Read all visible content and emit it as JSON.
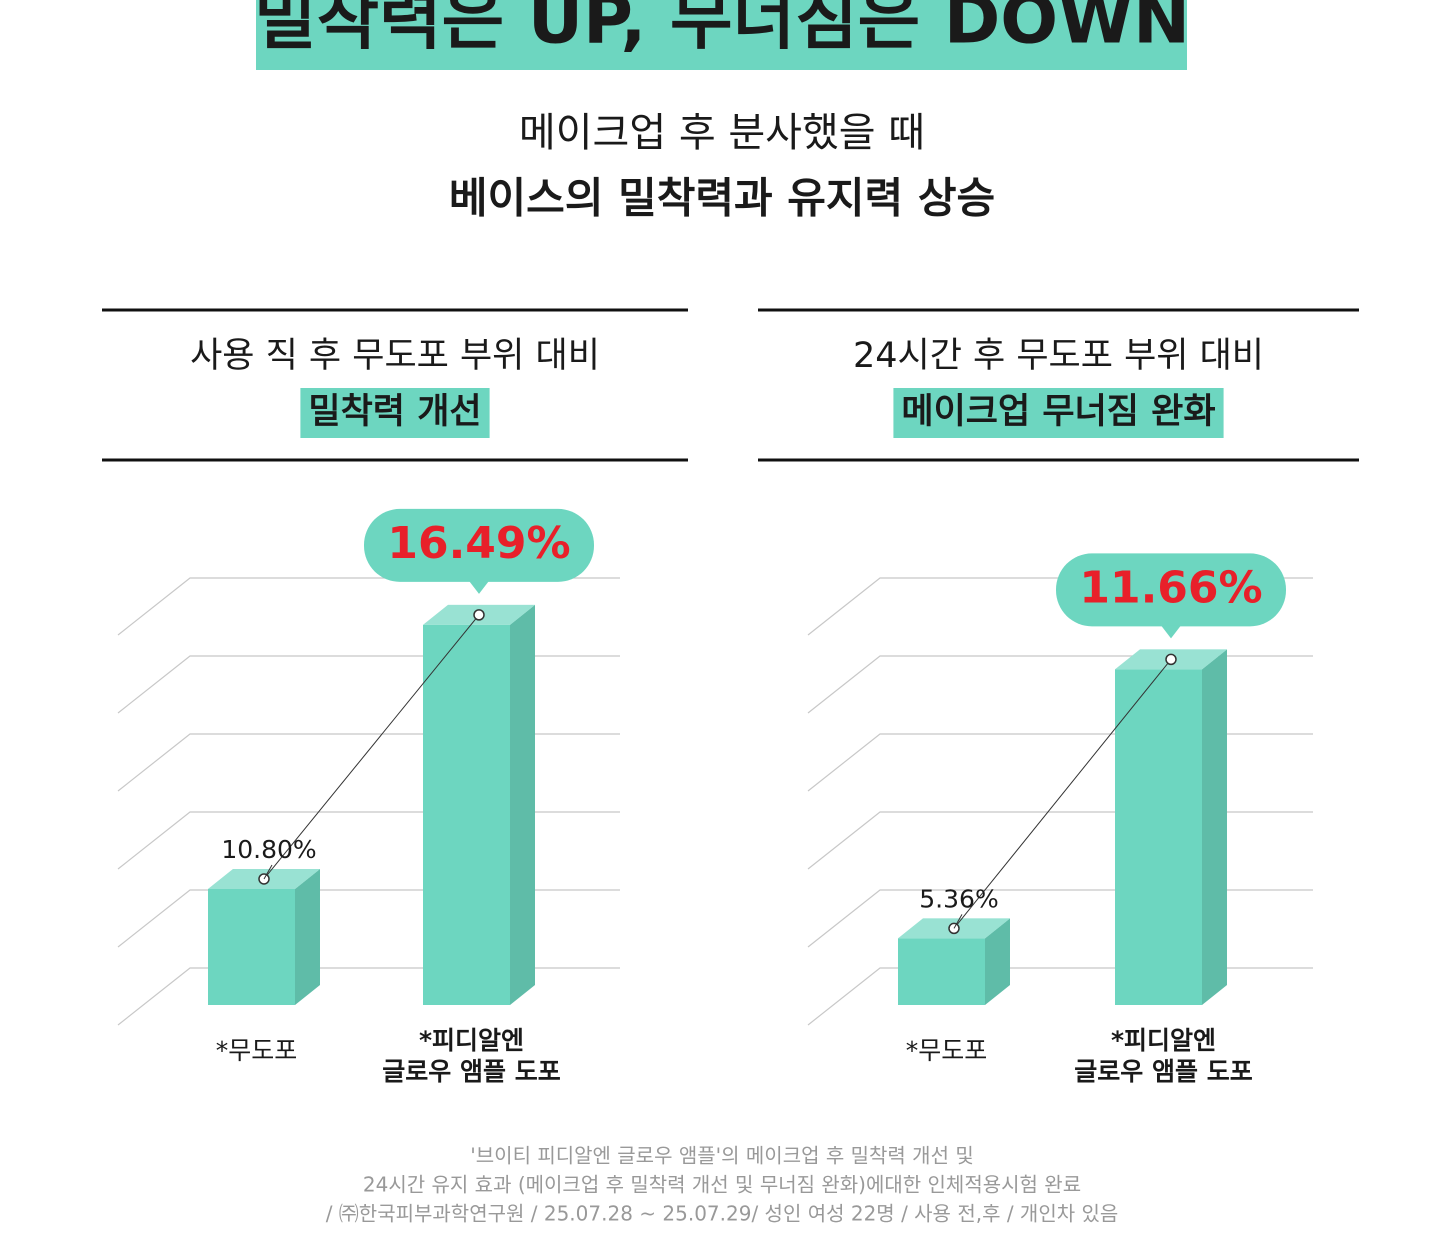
{
  "header": {
    "title": "밀착력은 UP, 무너짐은 DOWN",
    "subtitle": "메이크업 후 분사했을 때",
    "headline": "베이스의 밀착력과 유지력 상승"
  },
  "chart_data": [
    {
      "type": "bar",
      "title": "사용 직 후 무도포 부위 대비",
      "subtitle": "밀착력 개선",
      "categories": [
        "*무도포",
        "*피디알엔\n글로우 앰플 도포"
      ],
      "values": [
        10.8,
        16.49
      ],
      "value_labels": [
        "10.80%",
        "16.49%"
      ],
      "color": "#6dd6c0",
      "ylim": [
        8.3,
        17.5
      ],
      "grid": true
    },
    {
      "type": "bar",
      "title": "24시간 후 무도포 부위 대비",
      "subtitle": "메이크업 무너짐 완화",
      "categories": [
        "*무도포",
        "*피디알엔\n글로우 앰플 도포"
      ],
      "values": [
        5.36,
        11.66
      ],
      "value_labels": [
        "5.36%",
        "11.66%"
      ],
      "color": "#6dd6c0",
      "ylim": [
        3.8,
        13.8
      ],
      "grid": true
    }
  ],
  "footnote": [
    "'브이티 피디알엔 글로우 앰플'의 메이크업 후 밀착력 개선 및",
    "24시간 유지 효과 (메이크업 후 밀착력 개선 및 무너짐 완화)에대한 인체적용시험 완료",
    "/ ㈜한국피부과학연구원 / 25.07.28 ~ 25.07.29/ 성인 여성 22명 / 사용 전,후 / 개인차 있음"
  ]
}
